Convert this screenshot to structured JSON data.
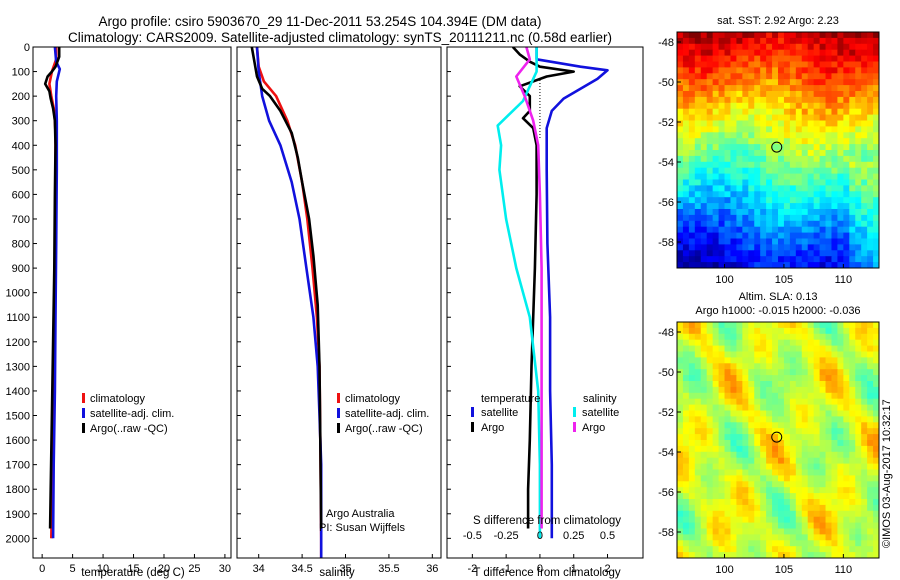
{
  "header": {
    "title_line1": "Argo profile: csiro 5903670_29 11-Dec-2011 53.254S 104.394E (DM data)",
    "title_line2": "Climatology: CARS2009. Satellite-adjusted climatology: synTS_20111211.nc (0.58d earlier)"
  },
  "colors": {
    "climatology": "#ee1111",
    "satellite": "#1111dd",
    "argo": "#000000",
    "sal_satellite": "#00eeee",
    "sal_argo": "#ee22ee"
  },
  "chart_data": [
    {
      "id": "temperature",
      "type": "line",
      "xlabel": "temperature (deg C)",
      "ylabel": "",
      "xlim": [
        -1.5,
        31
      ],
      "ylim": [
        2080,
        0
      ],
      "xticks": [
        0,
        5,
        10,
        15,
        20,
        25,
        30
      ],
      "yticks": [
        0,
        100,
        200,
        300,
        400,
        500,
        600,
        700,
        800,
        900,
        1000,
        1100,
        1200,
        1300,
        1400,
        1500,
        1600,
        1700,
        1800,
        1900,
        2000
      ],
      "legend": [
        "climatology",
        "satellite-adj. clim.",
        "Argo(..raw -QC)"
      ],
      "legend_position": "lower-center",
      "series": [
        {
          "key": "climatology",
          "color": "#ee1111",
          "points": [
            [
              2.3,
              0
            ],
            [
              2.3,
              50
            ],
            [
              1.6,
              100
            ],
            [
              1.2,
              150
            ],
            [
              1.5,
              200
            ],
            [
              2.0,
              260
            ],
            [
              2.2,
              350
            ],
            [
              2.2,
              500
            ],
            [
              2.1,
              800
            ],
            [
              2.0,
              1100
            ],
            [
              1.9,
              1400
            ],
            [
              1.7,
              1700
            ],
            [
              1.5,
              2000
            ]
          ]
        },
        {
          "key": "satellite",
          "color": "#1111dd",
          "points": [
            [
              2.1,
              0
            ],
            [
              2.3,
              60
            ],
            [
              2.9,
              90
            ],
            [
              2.4,
              140
            ],
            [
              2.3,
              200
            ],
            [
              2.4,
              300
            ],
            [
              2.4,
              500
            ],
            [
              2.3,
              800
            ],
            [
              2.2,
              1100
            ],
            [
              2.1,
              1400
            ],
            [
              1.9,
              1700
            ],
            [
              1.8,
              2000
            ]
          ]
        },
        {
          "key": "argo",
          "color": "#000000",
          "points": [
            [
              2.8,
              0
            ],
            [
              2.8,
              40
            ],
            [
              2.2,
              80
            ],
            [
              1.6,
              100
            ],
            [
              0.9,
              120
            ],
            [
              0.5,
              150
            ],
            [
              1.2,
              180
            ],
            [
              1.4,
              210
            ],
            [
              1.8,
              250
            ],
            [
              2.1,
              300
            ],
            [
              2.2,
              400
            ],
            [
              2.1,
              600
            ],
            [
              2.0,
              900
            ],
            [
              1.8,
              1200
            ],
            [
              1.6,
              1500
            ],
            [
              1.4,
              1800
            ],
            [
              1.3,
              1960
            ]
          ]
        }
      ]
    },
    {
      "id": "salinity",
      "type": "line",
      "xlabel": "salinity",
      "ylabel": "",
      "xlim": [
        33.75,
        36.1
      ],
      "ylim": [
        2080,
        0
      ],
      "xticks": [
        34,
        34.5,
        35,
        35.5,
        36
      ],
      "xticklabels": [
        "34",
        "34.5",
        "35",
        "35.5",
        "36"
      ],
      "legend": [
        "climatology",
        "satellite-adj. clim.",
        "Argo(..raw -QC)"
      ],
      "legend_position": "lower-center",
      "annotation": [
        "Argo Australia",
        "PI: Susan Wijffels"
      ],
      "series": [
        {
          "key": "climatology",
          "color": "#ee1111",
          "points": [
            [
              33.98,
              0
            ],
            [
              34.0,
              80
            ],
            [
              34.06,
              140
            ],
            [
              34.2,
              200
            ],
            [
              34.33,
              300
            ],
            [
              34.42,
              400
            ],
            [
              34.5,
              550
            ],
            [
              34.56,
              700
            ],
            [
              34.62,
              900
            ],
            [
              34.67,
              1100
            ],
            [
              34.7,
              1300
            ],
            [
              34.71,
              1600
            ],
            [
              34.72,
              2000
            ],
            [
              34.72,
              2080
            ]
          ]
        },
        {
          "key": "satellite",
          "color": "#1111dd",
          "points": [
            [
              33.98,
              0
            ],
            [
              34.0,
              100
            ],
            [
              34.04,
              200
            ],
            [
              34.12,
              300
            ],
            [
              34.25,
              400
            ],
            [
              34.38,
              550
            ],
            [
              34.47,
              700
            ],
            [
              34.55,
              900
            ],
            [
              34.63,
              1100
            ],
            [
              34.68,
              1300
            ],
            [
              34.7,
              1500
            ],
            [
              34.72,
              1700
            ],
            [
              34.72,
              2000
            ],
            [
              34.72,
              2080
            ]
          ]
        },
        {
          "key": "argo",
          "color": "#000000",
          "points": [
            [
              33.92,
              0
            ],
            [
              33.95,
              60
            ],
            [
              33.98,
              120
            ],
            [
              34.04,
              170
            ],
            [
              34.13,
              200
            ],
            [
              34.25,
              260
            ],
            [
              34.38,
              350
            ],
            [
              34.45,
              450
            ],
            [
              34.5,
              550
            ],
            [
              34.58,
              700
            ],
            [
              34.63,
              850
            ],
            [
              34.68,
              1050
            ],
            [
              34.7,
              1300
            ],
            [
              34.71,
              1600
            ],
            [
              34.72,
              1960
            ]
          ]
        }
      ]
    },
    {
      "id": "difference",
      "type": "line",
      "xlabel": "T difference from climatology",
      "xlabel_top": "S difference from climatology",
      "ylabel": "",
      "xlim": [
        -2.75,
        3.05
      ],
      "ylim": [
        2080,
        0
      ],
      "xticks": [
        -2,
        -1,
        0,
        1,
        2
      ],
      "s_xticks": [
        -0.5,
        -0.25,
        0,
        0.25,
        0.5
      ],
      "s_xticklabels": [
        "-0.5",
        "-0.25",
        "0",
        "0.25",
        "0.5"
      ],
      "legend_temperature_title": "temperature",
      "legend_salinity_title": "salinity",
      "legend_temperature": [
        "satellite",
        "Argo"
      ],
      "legend_salinity": [
        "satellite",
        "Argo"
      ],
      "series": [
        {
          "key": "satellite",
          "color": "#1111dd",
          "points": [
            [
              -0.1,
              0
            ],
            [
              -0.1,
              50
            ],
            [
              1.2,
              80
            ],
            [
              2.0,
              95
            ],
            [
              1.7,
              130
            ],
            [
              1.2,
              170
            ],
            [
              0.7,
              210
            ],
            [
              0.35,
              260
            ],
            [
              0.2,
              330
            ],
            [
              0.2,
              500
            ],
            [
              0.22,
              800
            ],
            [
              0.3,
              1100
            ],
            [
              0.3,
              1400
            ],
            [
              0.35,
              1700
            ],
            [
              0.35,
              2000
            ]
          ]
        },
        {
          "key": "argo",
          "color": "#000000",
          "points": [
            [
              -0.8,
              0
            ],
            [
              -0.6,
              30
            ],
            [
              -0.3,
              60
            ],
            [
              0.0,
              80
            ],
            [
              1.0,
              100
            ],
            [
              0.2,
              120
            ],
            [
              -0.6,
              160
            ],
            [
              -0.3,
              200
            ],
            [
              -0.3,
              260
            ],
            [
              -0.5,
              290
            ],
            [
              -0.2,
              330
            ],
            [
              -0.1,
              400
            ],
            [
              -0.1,
              600
            ],
            [
              -0.15,
              900
            ],
            [
              -0.25,
              1300
            ],
            [
              -0.3,
              1600
            ],
            [
              -0.35,
              1800
            ],
            [
              -0.35,
              1960
            ]
          ]
        },
        {
          "key": "sal_satellite",
          "color": "#00eeee",
          "points": [
            [
              -0.1,
              0
            ],
            [
              -0.1,
              100
            ],
            [
              -0.5,
              220
            ],
            [
              -1.25,
              320
            ],
            [
              -1.15,
              400
            ],
            [
              -1.2,
              500
            ],
            [
              -1.0,
              700
            ],
            [
              -0.7,
              900
            ],
            [
              -0.3,
              1100
            ],
            [
              -0.05,
              1400
            ],
            [
              0.0,
              1700
            ],
            [
              0.0,
              2000
            ]
          ]
        },
        {
          "key": "sal_argo",
          "color": "#ee22ee",
          "points": [
            [
              -0.4,
              0
            ],
            [
              -0.3,
              50
            ],
            [
              -0.7,
              120
            ],
            [
              -0.45,
              200
            ],
            [
              -0.2,
              300
            ],
            [
              -0.05,
              400
            ],
            [
              0.0,
              600
            ],
            [
              0.05,
              900
            ],
            [
              0.05,
              1300
            ],
            [
              0.05,
              1960
            ]
          ]
        }
      ]
    },
    {
      "id": "sst_map",
      "type": "heatmap",
      "title": "sat. SST: 2.92 Argo: 2.23",
      "xlim": [
        96,
        113
      ],
      "ylim": [
        -59.3,
        -47.5
      ],
      "xticks": [
        100,
        105,
        110
      ],
      "yticks": [
        -48,
        -50,
        -52,
        -54,
        -56,
        -58
      ],
      "marker": [
        104.394,
        -53.254
      ]
    },
    {
      "id": "sla_map",
      "type": "heatmap",
      "title_line1": "Altim. SLA: 0.13",
      "title_line2": "Argo h1000: -0.015 h2000: -0.036",
      "xlim": [
        96,
        113
      ],
      "ylim": [
        -59.3,
        -47.5
      ],
      "xticks": [
        100,
        105,
        110
      ],
      "yticks": [
        -48,
        -50,
        -52,
        -54,
        -56,
        -58
      ],
      "marker": [
        104.394,
        -53.254
      ],
      "side_text": "©IMOS 03-Aug-2017 10:32:17"
    }
  ]
}
